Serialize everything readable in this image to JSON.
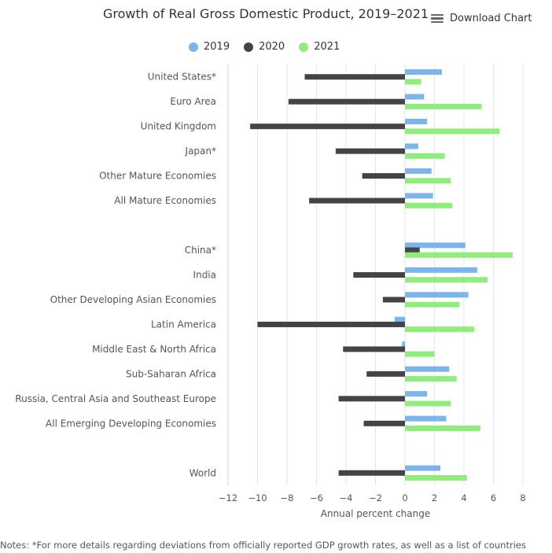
{
  "header": {
    "title": "Growth of Real Gross Domestic Product, 2019–2021",
    "download_label": "Download Chart",
    "menu_icon": "hamburger-menu-icon"
  },
  "notes": "Notes: *For more details regarding deviations from officially reported GDP growth rates, as well as a list of countries",
  "chart_data": {
    "type": "bar",
    "orientation": "horizontal",
    "title": "Growth of Real Gross Domestic Product, 2019–2021",
    "xlabel": "Annual percent change",
    "ylabel": "",
    "xlim": [
      -12,
      8
    ],
    "x_ticks": [
      -12,
      -10,
      -8,
      -6,
      -4,
      -2,
      0,
      2,
      4,
      6,
      8
    ],
    "grid": true,
    "legend_position": "top",
    "categories": [
      "United States*",
      "Euro Area",
      "United Kingdom",
      "Japan*",
      "Other Mature Economies",
      "All Mature Economies",
      "",
      "China*",
      "India",
      "Other Developing Asian Economies",
      "Latin America",
      "Middle East & North Africa",
      "Sub-Saharan Africa",
      "Russia, Central Asia and Southeast Europe",
      "All Emerging Developing Economies",
      "",
      "World"
    ],
    "series": [
      {
        "name": "2019",
        "color": "#7cb5ec",
        "values": [
          2.5,
          1.3,
          1.5,
          0.9,
          1.8,
          1.9,
          null,
          4.1,
          4.9,
          4.3,
          -0.7,
          -0.2,
          3.0,
          1.5,
          2.8,
          null,
          2.4
        ]
      },
      {
        "name": "2020",
        "color": "#434348",
        "values": [
          -6.8,
          -7.9,
          -10.5,
          -4.7,
          -2.9,
          -6.5,
          null,
          1.0,
          -3.5,
          -1.5,
          -10.0,
          -4.2,
          -2.6,
          -4.5,
          -2.8,
          null,
          -4.5
        ]
      },
      {
        "name": "2021",
        "color": "#90ed7d",
        "values": [
          1.1,
          5.2,
          6.4,
          2.7,
          3.1,
          3.2,
          null,
          7.3,
          5.6,
          3.7,
          4.7,
          2.0,
          3.5,
          3.1,
          5.1,
          null,
          4.2
        ]
      }
    ]
  }
}
